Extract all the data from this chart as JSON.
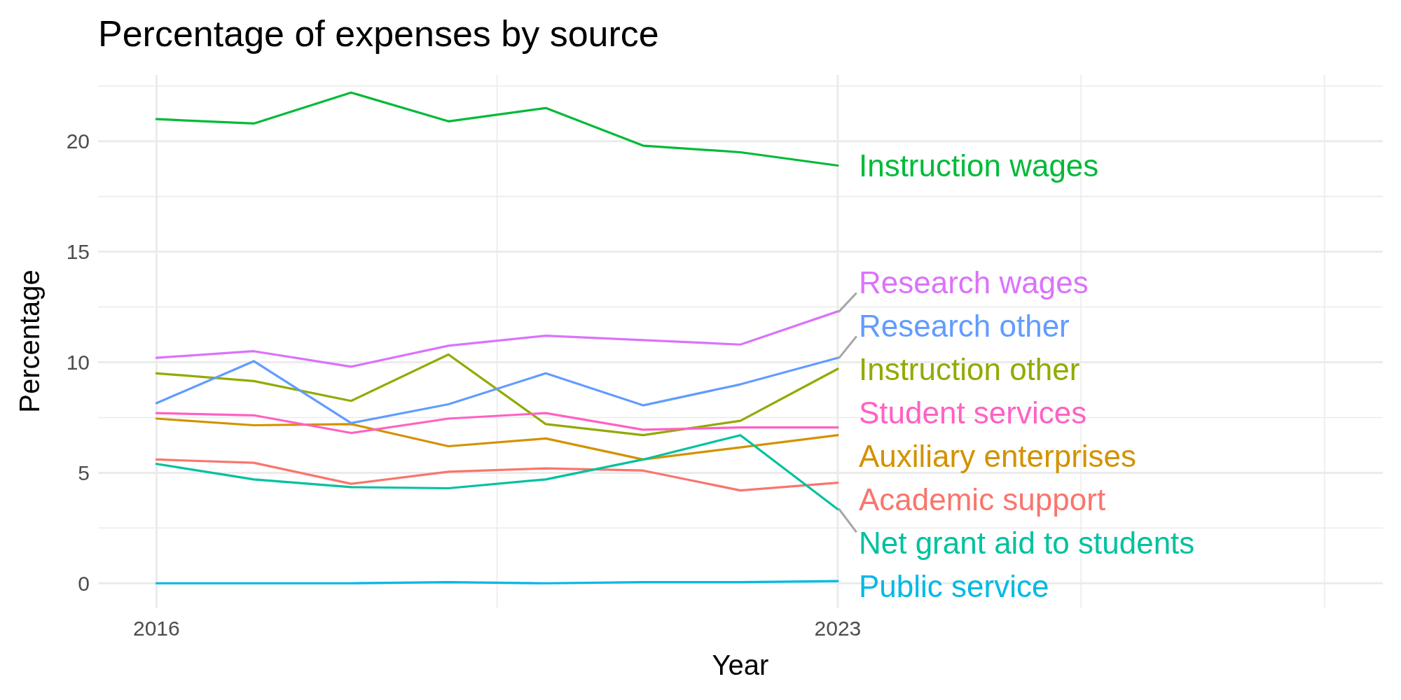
{
  "chart_data": {
    "type": "line",
    "title": "Percentage of expenses by source",
    "xlabel": "Year",
    "ylabel": "Percentage",
    "x": [
      2016,
      2017,
      2018,
      2019,
      2020,
      2021,
      2022,
      2023
    ],
    "xlim": [
      2015.4,
      2028.6
    ],
    "xticks": [
      2016,
      {
        "value": 2019.5,
        "label": null
      },
      2023,
      {
        "value": 2025.5,
        "label": null
      },
      {
        "value": 2028,
        "label": null
      }
    ],
    "ylim": [
      -1.1,
      23
    ],
    "yticks": [
      0,
      {
        "value": 2.5,
        "label": null
      },
      5,
      {
        "value": 7.5,
        "label": null
      },
      10,
      {
        "value": 12.5,
        "label": null
      },
      15,
      {
        "value": 17.5,
        "label": null
      },
      20,
      {
        "value": 22.5,
        "label": null
      }
    ],
    "grid": true,
    "marker": "none",
    "line_style": "solid",
    "series": [
      {
        "name": "Academic support",
        "color": "#f8766d",
        "values": [
          5.6,
          5.45,
          4.5,
          5.05,
          5.2,
          5.1,
          4.2,
          4.55
        ]
      },
      {
        "name": "Auxiliary enterprises",
        "color": "#d39200",
        "values": [
          7.45,
          7.15,
          7.2,
          6.2,
          6.55,
          5.6,
          6.15,
          6.7
        ]
      },
      {
        "name": "Instruction other",
        "color": "#93aa00",
        "values": [
          9.5,
          9.15,
          8.25,
          10.35,
          7.2,
          6.7,
          7.35,
          9.7
        ]
      },
      {
        "name": "Instruction wages",
        "color": "#00ba38",
        "values": [
          21.0,
          20.8,
          22.2,
          20.9,
          21.5,
          19.8,
          19.5,
          18.9
        ]
      },
      {
        "name": "Net grant aid to students",
        "color": "#00c19f",
        "values": [
          5.4,
          4.7,
          4.35,
          4.3,
          4.7,
          5.6,
          6.7,
          3.35
        ]
      },
      {
        "name": "Public service",
        "color": "#00b9e3",
        "values": [
          0,
          0,
          0,
          0.05,
          0,
          0.05,
          0.05,
          0.1
        ]
      },
      {
        "name": "Research other",
        "color": "#619cff",
        "values": [
          8.15,
          10.05,
          7.25,
          8.1,
          9.5,
          8.05,
          9.0,
          10.2
        ]
      },
      {
        "name": "Research wages",
        "color": "#db72fb",
        "values": [
          10.2,
          10.5,
          9.8,
          10.75,
          11.2,
          11.0,
          10.8,
          12.3
        ]
      },
      {
        "name": "Student services",
        "color": "#ff61c3",
        "values": [
          7.7,
          7.6,
          6.8,
          7.45,
          7.7,
          6.95,
          7.05,
          7.05
        ]
      }
    ]
  }
}
